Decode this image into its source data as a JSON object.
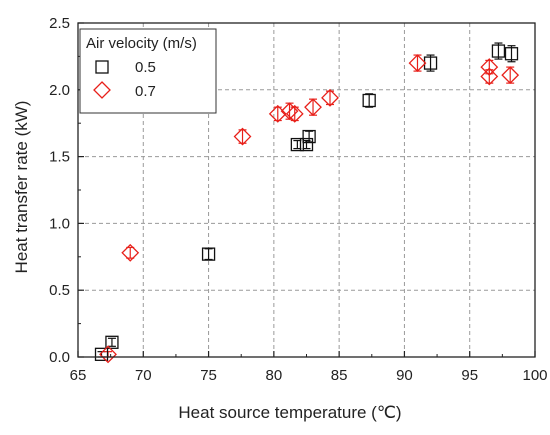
{
  "chart_data": {
    "type": "scatter",
    "xlabel": "Heat source temperature (℃)",
    "ylabel": "Heat transfer rate (kW)",
    "xlim": [
      65,
      100
    ],
    "ylim": [
      0.0,
      2.5
    ],
    "x_ticks": [
      "65",
      "70",
      "75",
      "80",
      "85",
      "90",
      "95",
      "100"
    ],
    "y_ticks": [
      "0.0",
      "0.5",
      "1.0",
      "1.5",
      "2.0",
      "2.5"
    ],
    "grid": true,
    "legend": {
      "title": "Air velocity (m/s)",
      "placement": "top-left"
    },
    "series": [
      {
        "name": "0.5",
        "marker": "square",
        "color": "#111111",
        "points": [
          {
            "x": 66.8,
            "y": 0.02,
            "err": 0.02
          },
          {
            "x": 67.6,
            "y": 0.11,
            "err": 0.03
          },
          {
            "x": 75.0,
            "y": 0.77,
            "err": 0.04
          },
          {
            "x": 81.8,
            "y": 1.59,
            "err": 0.03
          },
          {
            "x": 82.5,
            "y": 1.59,
            "err": 0.03
          },
          {
            "x": 82.7,
            "y": 1.65,
            "err": 0.04
          },
          {
            "x": 87.3,
            "y": 1.92,
            "err": 0.05
          },
          {
            "x": 92.0,
            "y": 2.2,
            "err": 0.06
          },
          {
            "x": 97.2,
            "y": 2.29,
            "err": 0.06
          },
          {
            "x": 98.2,
            "y": 2.27,
            "err": 0.06
          }
        ]
      },
      {
        "name": "0.7",
        "marker": "diamond",
        "color": "#e8201a",
        "points": [
          {
            "x": 67.3,
            "y": 0.02,
            "err": 0.02
          },
          {
            "x": 69.0,
            "y": 0.78,
            "err": 0.04
          },
          {
            "x": 77.6,
            "y": 1.65,
            "err": 0.05
          },
          {
            "x": 80.3,
            "y": 1.82,
            "err": 0.05
          },
          {
            "x": 81.2,
            "y": 1.84,
            "err": 0.06
          },
          {
            "x": 81.6,
            "y": 1.82,
            "err": 0.05
          },
          {
            "x": 83.0,
            "y": 1.87,
            "err": 0.06
          },
          {
            "x": 84.3,
            "y": 1.94,
            "err": 0.05
          },
          {
            "x": 91.0,
            "y": 2.2,
            "err": 0.06
          },
          {
            "x": 96.5,
            "y": 2.17,
            "err": 0.05
          },
          {
            "x": 96.5,
            "y": 2.1,
            "err": 0.05
          },
          {
            "x": 98.1,
            "y": 2.11,
            "err": 0.06
          }
        ]
      }
    ]
  }
}
